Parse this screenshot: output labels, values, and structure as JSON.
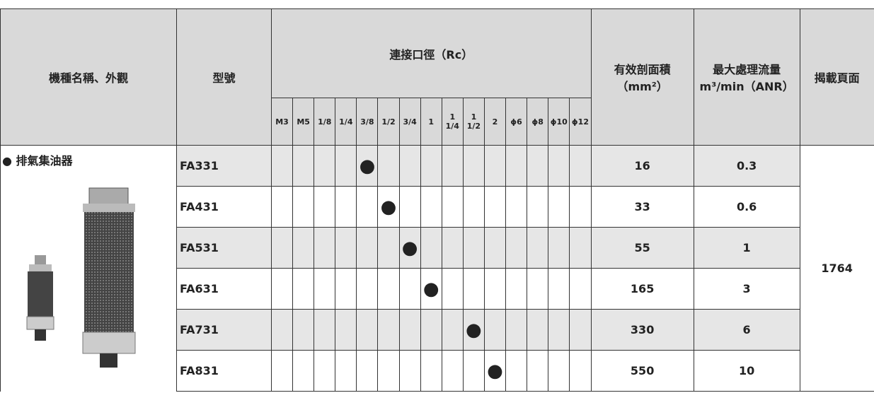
{
  "header": {
    "name": "機種名稱、外觀",
    "model": "型號",
    "connection": "連接口徑（Rc）",
    "ports": [
      "M3",
      "M5",
      "1/8",
      "1/4",
      "3/8",
      "1/2",
      "3/4",
      "1",
      "1 1/4",
      "1 1/2",
      "2",
      "ϕ6",
      "ϕ8",
      "ϕ10",
      "ϕ12"
    ],
    "area": {
      "line1": "有效剖面積",
      "line2": "（mm²）"
    },
    "flow": {
      "line1": "最大處理流量",
      "line2": "m³/min（ANR）"
    },
    "page": "揭載頁面"
  },
  "product": "● 排氣集油器",
  "page": 1764,
  "rows": [
    {
      "model": "FA331",
      "ports": [
        null,
        null,
        null,
        null,
        "●",
        null,
        null,
        null,
        null,
        null,
        null,
        null,
        null,
        null,
        null
      ],
      "area": 16,
      "flow": 0.3
    },
    {
      "model": "FA431",
      "ports": [
        null,
        null,
        null,
        null,
        null,
        "●",
        null,
        null,
        null,
        null,
        null,
        null,
        null,
        null,
        null
      ],
      "area": 33,
      "flow": 0.6
    },
    {
      "model": "FA531",
      "ports": [
        null,
        null,
        null,
        null,
        null,
        null,
        "●",
        null,
        null,
        null,
        null,
        null,
        null,
        null,
        null
      ],
      "area": 55,
      "flow": 1
    },
    {
      "model": "FA631",
      "ports": [
        null,
        null,
        null,
        null,
        null,
        null,
        null,
        "●",
        null,
        null,
        null,
        null,
        null,
        null,
        null
      ],
      "area": 165,
      "flow": 3
    },
    {
      "model": "FA731",
      "ports": [
        null,
        null,
        null,
        null,
        null,
        null,
        null,
        null,
        null,
        "●",
        null,
        null,
        null,
        null,
        null
      ],
      "area": 330,
      "flow": 6
    },
    {
      "model": "FA831",
      "ports": [
        null,
        null,
        null,
        null,
        null,
        null,
        null,
        null,
        null,
        null,
        "●",
        null,
        null,
        null,
        null
      ],
      "area": 550,
      "flow": 10
    }
  ]
}
